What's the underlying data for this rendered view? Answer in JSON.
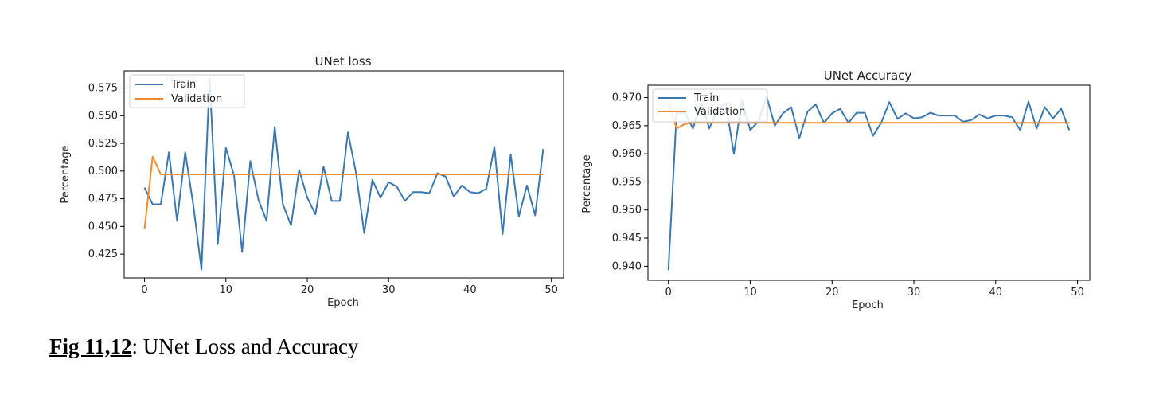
{
  "caption": {
    "label": "Fig 11,12",
    "text": ": UNet Loss and Accuracy"
  },
  "chart_data": [
    {
      "type": "line",
      "title": "UNet loss",
      "xlabel": "Epoch",
      "ylabel": "Percentage",
      "xlim": [
        -2.5,
        51.5
      ],
      "ylim": [
        0.4035,
        0.5905
      ],
      "xticks": [
        0,
        10,
        20,
        30,
        40,
        50
      ],
      "yticks": [
        0.425,
        0.45,
        0.475,
        0.5,
        0.525,
        0.55,
        0.575
      ],
      "legend": "upper-left",
      "grid": false,
      "x": [
        0,
        1,
        2,
        3,
        4,
        5,
        6,
        7,
        8,
        9,
        10,
        11,
        12,
        13,
        14,
        15,
        16,
        17,
        18,
        19,
        20,
        21,
        22,
        23,
        24,
        25,
        26,
        27,
        28,
        29,
        30,
        31,
        32,
        33,
        34,
        35,
        36,
        37,
        38,
        39,
        40,
        41,
        42,
        43,
        44,
        45,
        46,
        47,
        48,
        49
      ],
      "series": [
        {
          "name": "Train",
          "color": "#3b78b0",
          "values": [
            0.485,
            0.47,
            0.47,
            0.517,
            0.455,
            0.517,
            0.469,
            0.411,
            0.584,
            0.434,
            0.521,
            0.496,
            0.427,
            0.509,
            0.474,
            0.455,
            0.54,
            0.47,
            0.451,
            0.501,
            0.476,
            0.461,
            0.504,
            0.473,
            0.473,
            0.535,
            0.498,
            0.444,
            0.492,
            0.476,
            0.49,
            0.486,
            0.473,
            0.481,
            0.481,
            0.48,
            0.498,
            0.495,
            0.477,
            0.487,
            0.481,
            0.48,
            0.484,
            0.522,
            0.443,
            0.515,
            0.459,
            0.487,
            0.46,
            0.52
          ]
        },
        {
          "name": "Validation",
          "color": "#ef8a2f",
          "values": [
            0.448,
            0.513,
            0.497,
            0.497,
            0.497,
            0.497,
            0.497,
            0.497,
            0.497,
            0.497,
            0.497,
            0.497,
            0.497,
            0.497,
            0.497,
            0.497,
            0.497,
            0.497,
            0.497,
            0.497,
            0.497,
            0.497,
            0.497,
            0.497,
            0.497,
            0.497,
            0.497,
            0.497,
            0.497,
            0.497,
            0.497,
            0.497,
            0.497,
            0.497,
            0.497,
            0.497,
            0.497,
            0.497,
            0.497,
            0.497,
            0.497,
            0.497,
            0.497,
            0.497,
            0.497,
            0.497,
            0.497,
            0.497,
            0.497,
            0.497
          ]
        }
      ]
    },
    {
      "type": "line",
      "title": "UNet Accuracy",
      "xlabel": "Epoch",
      "ylabel": "Percentage",
      "xlim": [
        -2.5,
        51.5
      ],
      "ylim": [
        0.9375,
        0.9722
      ],
      "xticks": [
        0,
        10,
        20,
        30,
        40,
        50
      ],
      "yticks": [
        0.94,
        0.945,
        0.95,
        0.955,
        0.96,
        0.965,
        0.97
      ],
      "legend": "upper-left",
      "grid": false,
      "x": [
        0,
        1,
        2,
        3,
        4,
        5,
        6,
        7,
        8,
        9,
        10,
        11,
        12,
        13,
        14,
        15,
        16,
        17,
        18,
        19,
        20,
        21,
        22,
        23,
        24,
        25,
        26,
        27,
        28,
        29,
        30,
        31,
        32,
        33,
        34,
        35,
        36,
        37,
        38,
        39,
        40,
        41,
        42,
        43,
        44,
        45,
        46,
        47,
        48,
        49
      ],
      "series": [
        {
          "name": "Train",
          "color": "#3b78b0",
          "values": [
            0.9393,
            0.9673,
            0.9673,
            0.9645,
            0.9692,
            0.9645,
            0.968,
            0.969,
            0.96,
            0.9695,
            0.9642,
            0.9658,
            0.9702,
            0.965,
            0.9672,
            0.9683,
            0.9628,
            0.9675,
            0.9688,
            0.9655,
            0.9672,
            0.968,
            0.9655,
            0.9673,
            0.9673,
            0.9632,
            0.9655,
            0.9692,
            0.9662,
            0.9672,
            0.9663,
            0.9665,
            0.9673,
            0.9668,
            0.9668,
            0.9668,
            0.9657,
            0.966,
            0.967,
            0.9663,
            0.9668,
            0.9668,
            0.9665,
            0.9642,
            0.9693,
            0.9645,
            0.9683,
            0.9663,
            0.968,
            0.9642
          ]
        },
        {
          "name": "Validation",
          "color": "#ef8a2f",
          "values": [
            0.9693,
            0.9645,
            0.9653,
            0.9655,
            0.9655,
            0.9655,
            0.9655,
            0.9655,
            0.9655,
            0.9655,
            0.9655,
            0.9655,
            0.9655,
            0.9655,
            0.9655,
            0.9655,
            0.9655,
            0.9655,
            0.9655,
            0.9655,
            0.9655,
            0.9655,
            0.9655,
            0.9655,
            0.9655,
            0.9655,
            0.9655,
            0.9655,
            0.9655,
            0.9655,
            0.9655,
            0.9655,
            0.9655,
            0.9655,
            0.9655,
            0.9655,
            0.9655,
            0.9655,
            0.9655,
            0.9655,
            0.9655,
            0.9655,
            0.9655,
            0.9655,
            0.9655,
            0.9655,
            0.9655,
            0.9655,
            0.9655,
            0.9655
          ]
        }
      ]
    }
  ]
}
